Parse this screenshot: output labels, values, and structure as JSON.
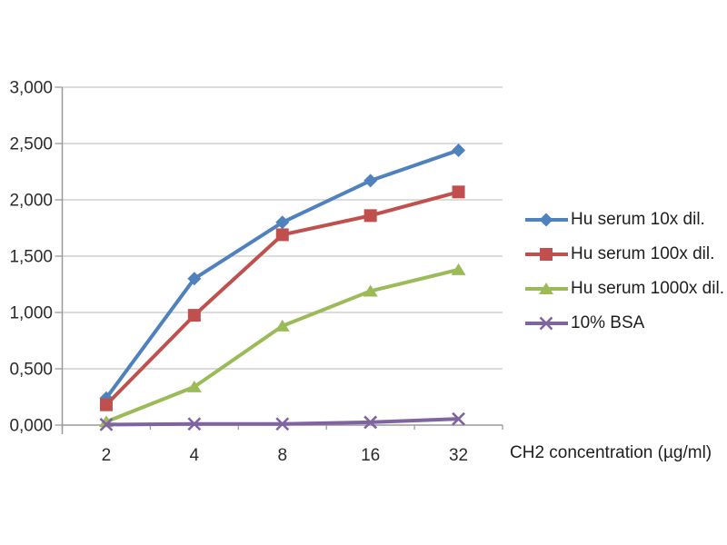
{
  "chart_data": {
    "type": "line",
    "title": "",
    "xlabel": "CH2 concentration (µg/ml)",
    "ylabel": "",
    "x_categories": [
      "2",
      "4",
      "8",
      "16",
      "32"
    ],
    "ylim": [
      0,
      3000
    ],
    "y_ticks": [
      0,
      500,
      1000,
      1500,
      2000,
      2500,
      3000
    ],
    "y_tick_labels": [
      "0,000",
      "0,500",
      "1,000",
      "1,500",
      "2,000",
      "2,500",
      "3,000"
    ],
    "grid": true,
    "legend_position": "right",
    "series": [
      {
        "name": "Hu serum 10x dil.",
        "marker": "diamond",
        "color": "#4F81BD",
        "values": [
          240,
          1300,
          1800,
          2170,
          2440
        ]
      },
      {
        "name": "Hu serum 100x dil.",
        "marker": "square",
        "color": "#C0504D",
        "values": [
          180,
          975,
          1690,
          1860,
          2070
        ]
      },
      {
        "name": "Hu serum 1000x dil.",
        "marker": "triangle",
        "color": "#9BBB59",
        "values": [
          30,
          340,
          880,
          1190,
          1380
        ]
      },
      {
        "name": "10% BSA",
        "marker": "x",
        "color": "#8064A2",
        "values": [
          5,
          10,
          10,
          25,
          55
        ]
      }
    ],
    "colors": {
      "gridline": "#c7c7c7",
      "axis": "#9a9a9a",
      "tick_text": "#2b2b2b",
      "background": "#ffffff"
    }
  }
}
